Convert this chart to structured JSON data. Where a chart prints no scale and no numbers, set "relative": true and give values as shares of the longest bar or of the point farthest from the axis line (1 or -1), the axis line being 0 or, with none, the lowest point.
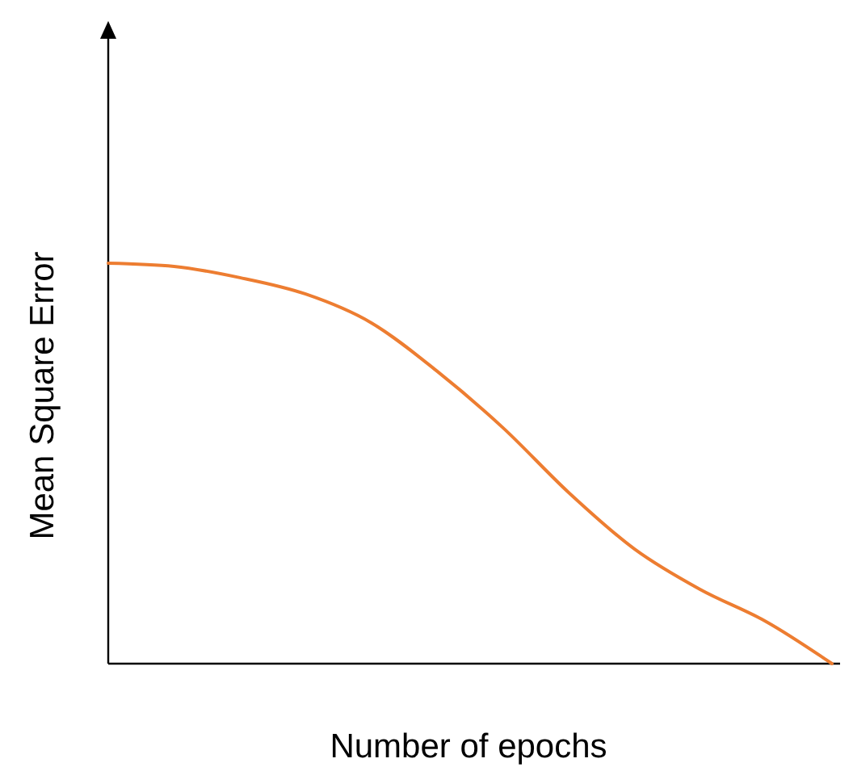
{
  "chart_data": {
    "type": "line",
    "relative": true,
    "xlabel": "Number of epochs",
    "ylabel": "Mean Square Error",
    "categories": [
      null,
      null,
      null,
      null,
      null,
      null,
      null,
      null,
      null,
      null,
      null,
      null
    ],
    "series": [
      {
        "color": "#ed7d31",
        "values": [
          1,
          0.992,
          0.964,
          0.923,
          0.851,
          0.73,
          0.589,
          0.427,
          0.286,
          0.185,
          0.105,
          0
        ]
      }
    ]
  }
}
